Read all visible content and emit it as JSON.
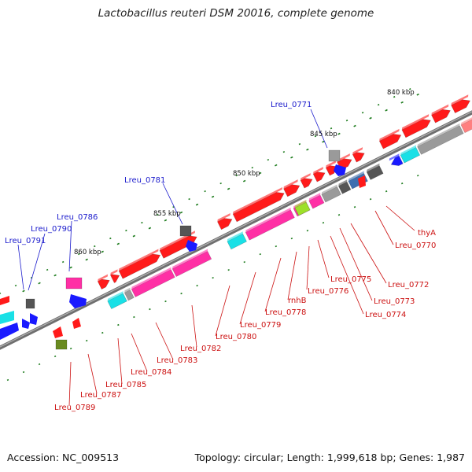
{
  "title": "Lactobacillus reuteri DSM 20016, complete genome",
  "footer": {
    "accession": "Accession: NC_009513",
    "topology": "Topology: circular; Length: 1,999,618 bp; Genes: 1,987"
  },
  "scale_labels": [
    "840 kbp",
    "845 kbp",
    "850 kbp",
    "855 kbp",
    "860 kbp"
  ],
  "gene_labels_top": [
    "Lreu_0771",
    "Lreu_0781",
    "Lreu_0786",
    "Lreu_0790",
    "Lreu_0791"
  ],
  "gene_labels_bottom": [
    "thyA",
    "Lreu_0770",
    "Lreu_0772",
    "Lreu_0773",
    "Lreu_0774",
    "Lreu_0775",
    "Lreu_0776",
    "rnhB",
    "Lreu_0778",
    "Lreu_0779",
    "Lreu_0780",
    "Lreu_0782",
    "Lreu_0783",
    "Lreu_0784",
    "Lreu_0785",
    "Lreu_0787",
    "Lreu_0789"
  ],
  "colors": {
    "backbone": "#808080",
    "forward_gene": "#ff1a1a",
    "reverse_gene": "#1a1aff",
    "label_top": "#1a1acc",
    "label_bottom": "#cc1111",
    "tick": "#1a7a1a",
    "magenta": "#ff2fa5",
    "cyan": "#19e0e6",
    "gray": "#9a9a9a",
    "dark_gray": "#555555",
    "steelblue": "#3f6fb0",
    "lime": "#9de02a",
    "olive": "#6a8a20",
    "pink": "#ff8080"
  }
}
